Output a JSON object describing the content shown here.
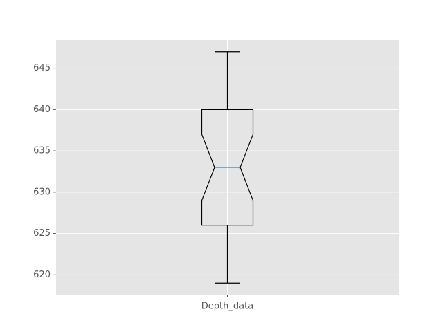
{
  "chart_data": {
    "type": "box",
    "style": "ggplot",
    "notched": true,
    "categories": [
      "Depth_data"
    ],
    "boxes": [
      {
        "name": "Depth_data",
        "whisker_low": 619,
        "q1": 626,
        "notch_low": 629,
        "median": 633,
        "notch_high": 637,
        "q3": 640,
        "whisker_high": 647
      }
    ],
    "title": "",
    "xlabel": "",
    "ylabel": "",
    "ylim": [
      617.6,
      648.4
    ],
    "yticks": [
      620,
      625,
      630,
      635,
      640,
      645
    ],
    "grid": true,
    "colors": {
      "background": "#E5E5E5",
      "grid": "#FFFFFF",
      "box": "#000000",
      "median": "#3F7FB5",
      "tick_text": "#555555"
    }
  }
}
